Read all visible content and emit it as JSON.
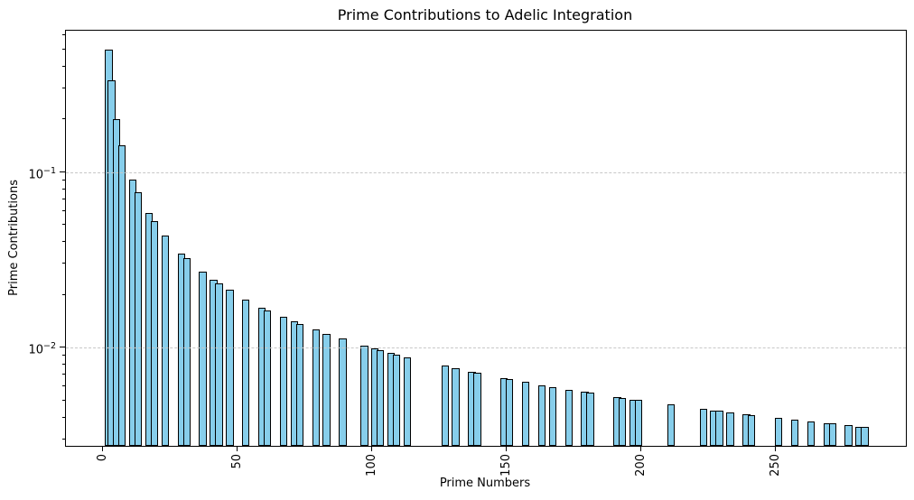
{
  "figure": {
    "background": "#ffffff"
  },
  "chart_data": {
    "type": "bar",
    "title": "Prime Contributions to Adelic Integration",
    "xlabel": "Prime Numbers",
    "ylabel": "Prime Contributions",
    "yscale": "log",
    "grid": {
      "axis": "y",
      "linestyle": "dashed",
      "color": "#c8c8c8",
      "on_top_of_bars": true
    },
    "bar": {
      "fill": "#87CEEB",
      "edge": "#000000",
      "width_units": 2.8
    },
    "categories": [
      2,
      3,
      5,
      7,
      11,
      13,
      17,
      19,
      23,
      29,
      31,
      37,
      41,
      43,
      47,
      53,
      59,
      61,
      67,
      71,
      73,
      79,
      83,
      89,
      97,
      101,
      103,
      107,
      109,
      113,
      127,
      131,
      137,
      139,
      149,
      151,
      157,
      163,
      167,
      173,
      179,
      181,
      191,
      193,
      197,
      199,
      211,
      223,
      227,
      229,
      233,
      239,
      241,
      251,
      257,
      263,
      269,
      271,
      277,
      281,
      283
    ],
    "values": [
      0.5,
      0.333333,
      0.2,
      0.142857,
      0.0909091,
      0.0769231,
      0.0588235,
      0.0526316,
      0.0434783,
      0.0344828,
      0.0322581,
      0.027027,
      0.0243902,
      0.0232558,
      0.0212766,
      0.0188679,
      0.0169492,
      0.0163934,
      0.0149254,
      0.0140845,
      0.0136986,
      0.0126582,
      0.0120482,
      0.011236,
      0.0103093,
      0.009901,
      0.0097087,
      0.0093458,
      0.0091743,
      0.0088496,
      0.007874,
      0.0076336,
      0.0072993,
      0.0071942,
      0.0067114,
      0.0066225,
      0.0063694,
      0.006135,
      0.005988,
      0.0057803,
      0.0055866,
      0.0055249,
      0.0052356,
      0.0051813,
      0.0050761,
      0.0050251,
      0.0047393,
      0.0044843,
      0.0044053,
      0.0043668,
      0.0042918,
      0.0041841,
      0.0041494,
      0.0039841,
      0.0038911,
      0.0038023,
      0.0037175,
      0.00369,
      0.0036101,
      0.0035587,
      0.0035336
    ],
    "xlim": [
      -13.9,
      298.3
    ],
    "ylim": [
      0.00276,
      0.64
    ],
    "xticks": [
      0,
      50,
      100,
      150,
      200,
      250
    ],
    "xtick_rotation": 90,
    "yticks_major": [
      {
        "value": 0.1,
        "base": "10",
        "exponent": "−1"
      },
      {
        "value": 0.01,
        "base": "10",
        "exponent": "−2"
      }
    ]
  }
}
